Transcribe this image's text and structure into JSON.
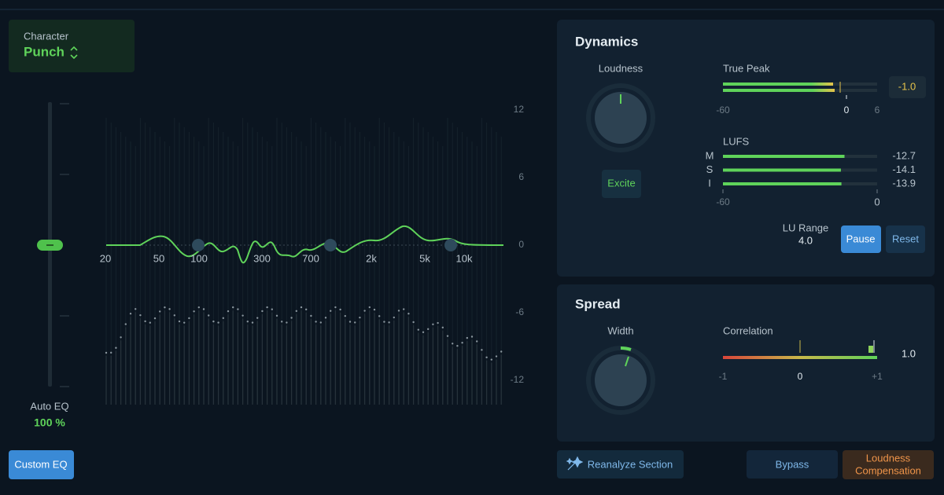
{
  "character": {
    "label": "Character",
    "value": "Punch"
  },
  "auto_eq": {
    "label": "Auto EQ",
    "value": "100 %"
  },
  "custom_eq": "Custom EQ",
  "eq": {
    "freq_labels": [
      "20",
      "50",
      "100",
      "300",
      "700",
      "2k",
      "5k",
      "10k"
    ],
    "gain_labels": [
      "12",
      "6",
      "0",
      "-6",
      "-12"
    ]
  },
  "dynamics": {
    "title": "Dynamics",
    "loudness": "Loudness",
    "excite": "Excite",
    "true_peak": {
      "label": "True Peak",
      "value": "-1.0",
      "scale": [
        "-60",
        "0",
        "6"
      ]
    },
    "lufs": {
      "label": "LUFS",
      "range": [
        -60,
        0
      ],
      "rows": [
        {
          "label": "M",
          "value": -12.7
        },
        {
          "label": "S",
          "value": -14.1
        },
        {
          "label": "I",
          "value": -13.9
        }
      ]
    },
    "lu_range": {
      "label": "LU Range",
      "value": "4.0"
    },
    "pause": "Pause",
    "reset": "Reset"
  },
  "spread": {
    "title": "Spread",
    "width": "Width",
    "correlation": {
      "label": "Correlation",
      "value": "1.0",
      "scale": [
        "-1",
        "0",
        "+1"
      ]
    }
  },
  "buttons": {
    "reanalyze": "Reanalyze Section",
    "bypass": "Bypass",
    "loudness_compensation": [
      "Loudness",
      "Compensation"
    ]
  }
}
